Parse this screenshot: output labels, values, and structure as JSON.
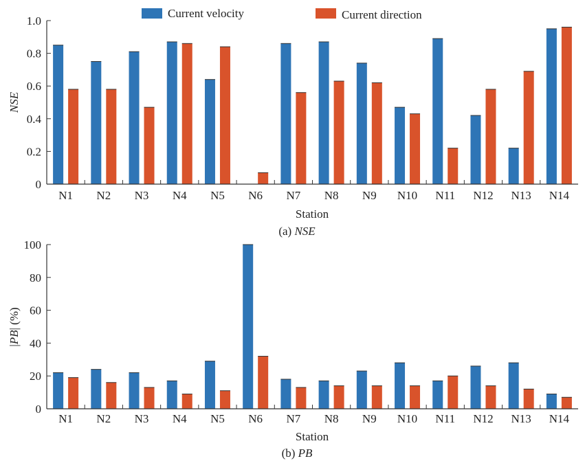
{
  "legend": {
    "entries": [
      {
        "label": "Current velocity",
        "color": "#2e75b6"
      },
      {
        "label": "Current direction",
        "color": "#d9532b"
      }
    ]
  },
  "chart_data": [
    {
      "type": "bar",
      "caption_prefix": "(a) ",
      "caption_metric": "NSE",
      "xlabel": "Station",
      "ylabel": "NSE",
      "ylim": [
        0,
        1.0
      ],
      "yticks": [
        0,
        0.2,
        0.4,
        0.6,
        0.8,
        1.0
      ],
      "ytick_labels": [
        "0",
        "0.2",
        "0.4",
        "0.6",
        "0.8",
        "1.0"
      ],
      "grid": false,
      "legend_position": "top",
      "categories": [
        "N1",
        "N2",
        "N3",
        "N4",
        "N5",
        "N6",
        "N7",
        "N8",
        "N9",
        "N10",
        "N11",
        "N12",
        "N13",
        "N14"
      ],
      "series": [
        {
          "name": "Current velocity",
          "color": "#2e75b6",
          "values": [
            0.85,
            0.75,
            0.81,
            0.87,
            0.64,
            0.0,
            0.86,
            0.87,
            0.74,
            0.47,
            0.89,
            0.42,
            0.22,
            0.95
          ]
        },
        {
          "name": "Current direction",
          "color": "#d9532b",
          "values": [
            0.58,
            0.58,
            0.47,
            0.86,
            0.84,
            0.07,
            0.56,
            0.63,
            0.62,
            0.43,
            0.22,
            0.58,
            0.69,
            0.96
          ]
        }
      ]
    },
    {
      "type": "bar",
      "caption_prefix": "(b) ",
      "caption_metric": "PB",
      "xlabel": "Station",
      "ylabel_left": "|",
      "ylabel_metric": "PB",
      "ylabel_right": "| (%)",
      "ylim": [
        0,
        100
      ],
      "yticks": [
        0,
        20,
        40,
        60,
        80,
        100
      ],
      "ytick_labels": [
        "0",
        "20",
        "40",
        "60",
        "80",
        "100"
      ],
      "grid": false,
      "categories": [
        "N1",
        "N2",
        "N3",
        "N4",
        "N5",
        "N6",
        "N7",
        "N8",
        "N9",
        "N10",
        "N11",
        "N12",
        "N13",
        "N14"
      ],
      "series": [
        {
          "name": "Current velocity",
          "color": "#2e75b6",
          "values": [
            22,
            24,
            22,
            17,
            29,
            100,
            18,
            17,
            23,
            28,
            17,
            26,
            28,
            9
          ]
        },
        {
          "name": "Current direction",
          "color": "#d9532b",
          "values": [
            19,
            16,
            13,
            9,
            11,
            32,
            13,
            14,
            14,
            14,
            20,
            14,
            12,
            7
          ]
        }
      ]
    }
  ]
}
